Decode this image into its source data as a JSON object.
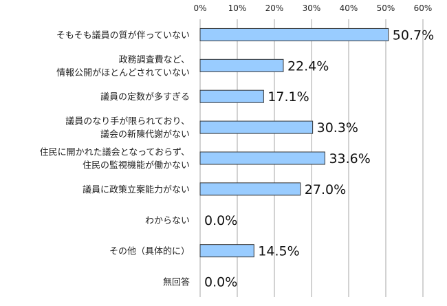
{
  "chart_data": {
    "type": "bar",
    "orientation": "horizontal",
    "title": "",
    "xlabel": "",
    "ylabel": "",
    "xlim": [
      0,
      60
    ],
    "grid": true,
    "x_ticks": [
      "0%",
      "10%",
      "20%",
      "30%",
      "40%",
      "50%",
      "60%"
    ],
    "categories": [
      [
        "そもそも議員の質が伴っていない"
      ],
      [
        "政務調査費など、",
        "情報公開がほとんどされていない"
      ],
      [
        "議員の定数が多すぎる"
      ],
      [
        "議員のなり手が限られており、",
        "議会の新陳代謝がない"
      ],
      [
        "住民に開かれた議会となっておらず、",
        "住民の監視機能が働かない"
      ],
      [
        "議員に政策立案能力がない"
      ],
      [
        "わからない"
      ],
      [
        "その他（具体的に）"
      ],
      [
        "無回答"
      ]
    ],
    "values": [
      50.7,
      22.4,
      17.1,
      30.3,
      33.6,
      27.0,
      0.0,
      14.5,
      0.0
    ],
    "value_labels": [
      "50.7%",
      "22.4%",
      "17.1%",
      "30.3%",
      "33.6%",
      "27.0%",
      "0.0%",
      "14.5%",
      "0.0%"
    ],
    "colors": {
      "bar": "#99CCFF",
      "bar_border": "#333333",
      "grid": "#A6A6A6"
    }
  }
}
